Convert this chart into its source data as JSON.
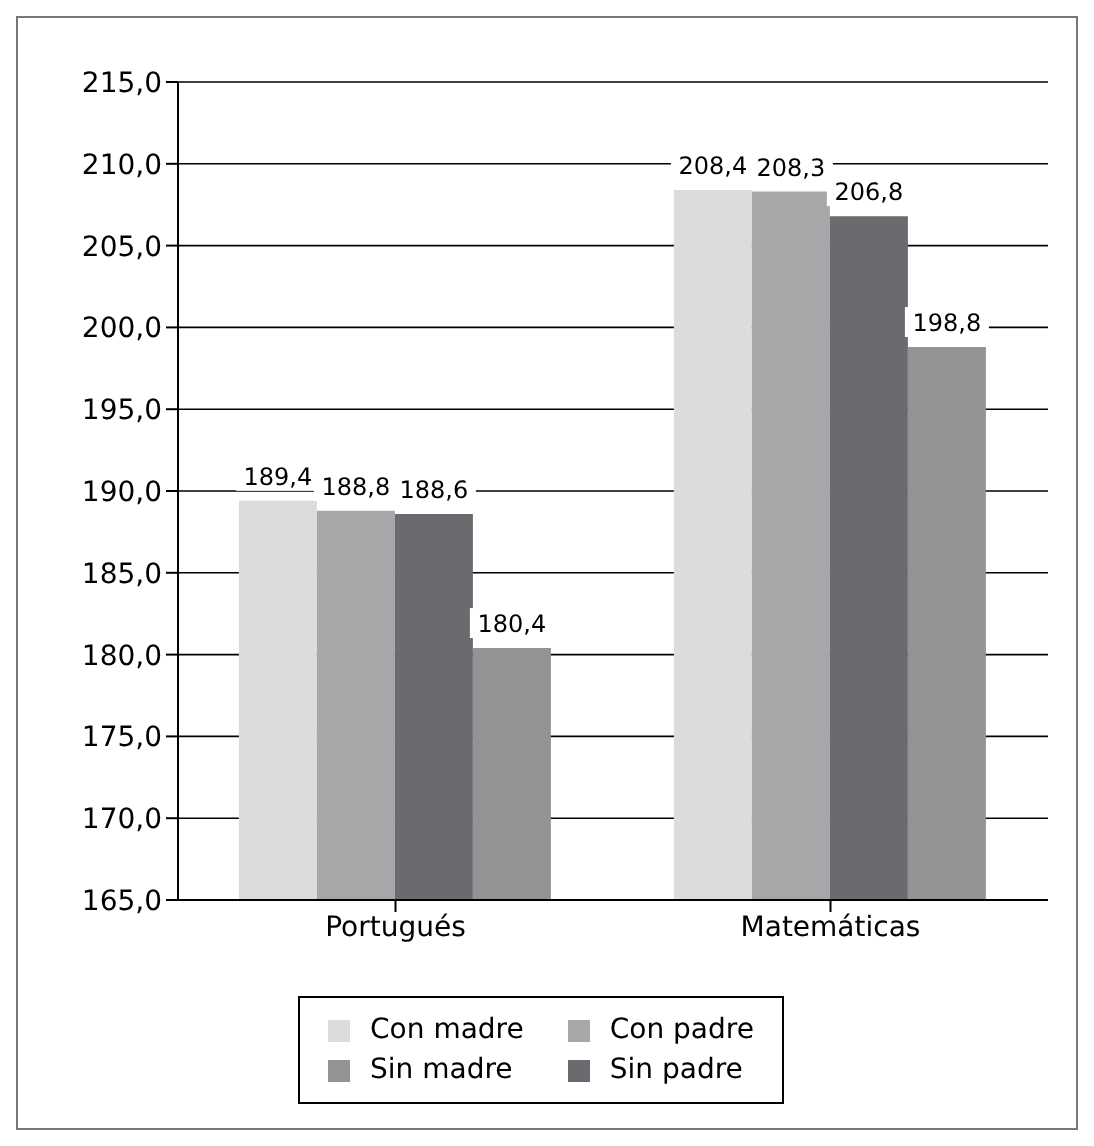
{
  "chart_data": {
    "type": "bar",
    "categories": [
      "Portugués",
      "Matemáticas"
    ],
    "series": [
      {
        "name": "Con madre",
        "color": "#dcdcdf",
        "values": [
          189.4,
          208.4
        ],
        "value_labels": [
          "189,4",
          "208,4"
        ]
      },
      {
        "name": "Con padre",
        "color": "#a7a7aa",
        "values": [
          188.8,
          208.3
        ],
        "value_labels": [
          "188,8",
          "208,3"
        ]
      },
      {
        "name": "Sin padre",
        "color": "#6b6b6f",
        "values": [
          188.6,
          206.8
        ],
        "value_labels": [
          "188,6",
          "206,8"
        ]
      },
      {
        "name": "Sin madre",
        "color": "#939396",
        "values": [
          180.4,
          198.8
        ],
        "value_labels": [
          "180,4",
          "198,8"
        ]
      }
    ],
    "ylim": [
      165,
      215
    ],
    "yticks": [
      {
        "value": 165,
        "label": "165,0"
      },
      {
        "value": 170,
        "label": "170,0"
      },
      {
        "value": 175,
        "label": "175,0"
      },
      {
        "value": 180,
        "label": "180,0"
      },
      {
        "value": 185,
        "label": "185,0"
      },
      {
        "value": 190,
        "label": "190,0"
      },
      {
        "value": 195,
        "label": "195,0"
      },
      {
        "value": 200,
        "label": "200,0"
      },
      {
        "value": 205,
        "label": "205,0"
      },
      {
        "value": 210,
        "label": "210,0"
      },
      {
        "value": 215,
        "label": "215,0"
      }
    ],
    "grid": "y",
    "legend": "bottom"
  }
}
